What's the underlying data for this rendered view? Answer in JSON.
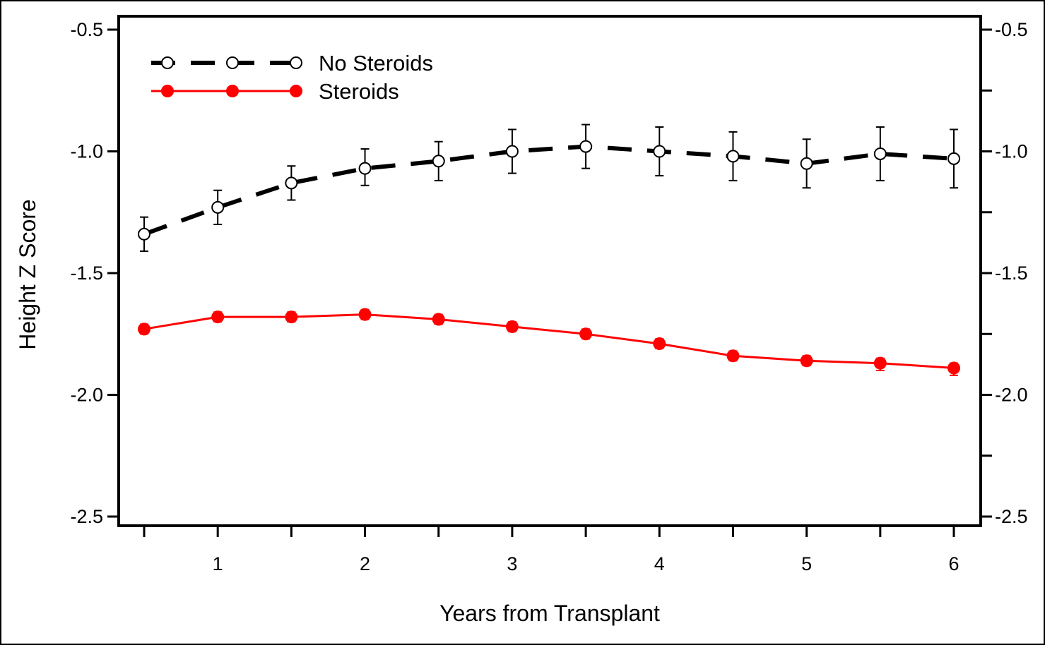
{
  "chart_data": {
    "type": "line",
    "title": "",
    "xlabel": "Years from Transplant",
    "ylabel": "Height Z Score",
    "xlim": [
      0.5,
      6.15
    ],
    "ylim": [
      -2.54,
      -0.42
    ],
    "x_ticks": [
      0.5,
      1,
      1.5,
      2,
      2.5,
      3,
      3.5,
      4,
      4.5,
      5,
      5.5,
      6
    ],
    "x_tick_labels": [
      {
        "value": 1,
        "label": "1"
      },
      {
        "value": 2,
        "label": "2"
      },
      {
        "value": 3,
        "label": "3"
      },
      {
        "value": 4,
        "label": "4"
      },
      {
        "value": 5,
        "label": "5"
      },
      {
        "value": 6,
        "label": "6"
      }
    ],
    "y_ticks_left": [
      {
        "value": -0.5,
        "label": "-0.5"
      },
      {
        "value": -1.0,
        "label": "-1.0"
      },
      {
        "value": -1.5,
        "label": "-1.5"
      },
      {
        "value": -2.0,
        "label": "-2.0"
      },
      {
        "value": -2.5,
        "label": "-2.5"
      }
    ],
    "y_ticks_right": [
      {
        "value": -0.5,
        "label": "-0.5"
      },
      {
        "value": -0.75,
        "label": ""
      },
      {
        "value": -1.0,
        "label": "-1.0"
      },
      {
        "value": -1.25,
        "label": ""
      },
      {
        "value": -1.5,
        "label": "-1.5"
      },
      {
        "value": -1.75,
        "label": ""
      },
      {
        "value": -2.0,
        "label": "-2.0"
      },
      {
        "value": -2.25,
        "label": ""
      },
      {
        "value": -2.5,
        "label": "-2.5"
      }
    ],
    "grid": false,
    "legend_position": "top-left",
    "x": [
      0.5,
      1,
      1.5,
      2,
      2.5,
      3,
      3.5,
      4,
      4.5,
      5,
      5.5,
      6
    ],
    "series": [
      {
        "name": "No Steroids",
        "color": "#000000",
        "line_style": "dashed",
        "marker": "open-circle",
        "values": [
          -1.34,
          -1.23,
          -1.13,
          -1.07,
          -1.04,
          -1.0,
          -0.98,
          -1.0,
          -1.02,
          -1.05,
          -1.01,
          -1.03
        ],
        "error_low": [
          -1.41,
          -1.3,
          -1.2,
          -1.14,
          -1.12,
          -1.09,
          -1.07,
          -1.1,
          -1.12,
          -1.15,
          -1.12,
          -1.15
        ],
        "error_high": [
          -1.27,
          -1.16,
          -1.06,
          -0.99,
          -0.96,
          -0.91,
          -0.89,
          -0.9,
          -0.92,
          -0.95,
          -0.9,
          -0.91
        ]
      },
      {
        "name": "Steroids",
        "color": "#ff0000",
        "line_style": "solid",
        "marker": "filled-circle",
        "values": [
          -1.73,
          -1.68,
          -1.68,
          -1.67,
          -1.69,
          -1.72,
          -1.75,
          -1.79,
          -1.84,
          -1.86,
          -1.87,
          -1.89
        ],
        "error_low": [
          -1.75,
          -1.7,
          -1.7,
          -1.69,
          -1.71,
          -1.74,
          -1.77,
          -1.81,
          -1.86,
          -1.88,
          -1.9,
          -1.92
        ],
        "error_high": [
          -1.71,
          -1.66,
          -1.66,
          -1.65,
          -1.67,
          -1.7,
          -1.73,
          -1.77,
          -1.82,
          -1.84,
          -1.85,
          -1.87
        ]
      }
    ]
  }
}
